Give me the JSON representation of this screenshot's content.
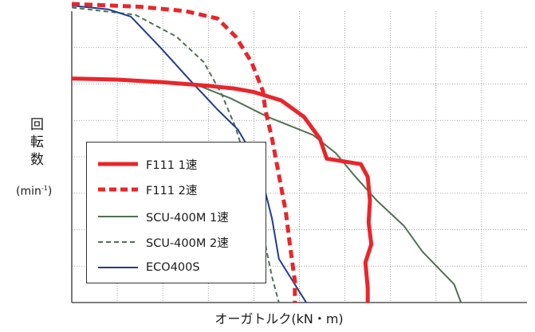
{
  "chart_data": {
    "type": "line",
    "title": "",
    "ylabel_chars": [
      "回",
      "転",
      "数"
    ],
    "ylabel_unit": {
      "before": "(min",
      "sup": "-1",
      "after": ")"
    },
    "xlabel": "オーガトルク(kN・m)",
    "xlim": [
      0,
      10
    ],
    "ylim": [
      0,
      8
    ],
    "grid": {
      "x_lines": 10,
      "y_lines": 8,
      "style": "dotted"
    },
    "legend_position": "lower-left",
    "series": [
      {
        "name": "F111 1速",
        "color": "#e8262b",
        "dash": "solid",
        "width": 5,
        "points": [
          [
            0,
            6.15
          ],
          [
            1,
            6.12
          ],
          [
            2,
            6.05
          ],
          [
            3,
            5.95
          ],
          [
            3.6,
            5.87
          ],
          [
            4,
            5.78
          ],
          [
            4.6,
            5.55
          ],
          [
            5.1,
            5.1
          ],
          [
            5.45,
            4.5
          ],
          [
            5.6,
            3.95
          ],
          [
            6.35,
            3.8
          ],
          [
            6.5,
            3.45
          ],
          [
            6.55,
            2.8
          ],
          [
            6.52,
            2.2
          ],
          [
            6.58,
            1.6
          ],
          [
            6.45,
            1.1
          ],
          [
            6.5,
            0.4
          ],
          [
            6.5,
            0.0
          ]
        ]
      },
      {
        "name": "F111 2速",
        "color": "#e8262b",
        "dash": "dashed",
        "width": 5,
        "points": [
          [
            0,
            8.2
          ],
          [
            1.5,
            8.12
          ],
          [
            2.5,
            8.0
          ],
          [
            3.2,
            7.8
          ],
          [
            3.6,
            7.3
          ],
          [
            3.95,
            6.6
          ],
          [
            4.2,
            5.8
          ],
          [
            4.25,
            5.3
          ],
          [
            4.4,
            4.5
          ],
          [
            4.55,
            3.5
          ],
          [
            4.7,
            2.5
          ],
          [
            4.8,
            1.5
          ],
          [
            4.9,
            0.6
          ],
          [
            4.9,
            0.0
          ]
        ]
      },
      {
        "name": "SCU-400M 1速",
        "color": "#4f7152",
        "dash": "solid",
        "width": 2,
        "points": [
          [
            0,
            6.15
          ],
          [
            1.5,
            6.1
          ],
          [
            2.7,
            6.0
          ],
          [
            3.5,
            5.6
          ],
          [
            4.3,
            5.1
          ],
          [
            5.3,
            4.6
          ],
          [
            5.8,
            4.1
          ],
          [
            6.2,
            3.5
          ],
          [
            6.7,
            2.8
          ],
          [
            7.3,
            2.1
          ],
          [
            7.7,
            1.4
          ],
          [
            8.4,
            0.5
          ],
          [
            8.55,
            0.0
          ]
        ]
      },
      {
        "name": "SCU-400M 2速",
        "color": "#4f7152",
        "dash": "dashed",
        "width": 2,
        "points": [
          [
            0,
            8.1
          ],
          [
            1.4,
            7.9
          ],
          [
            2.3,
            7.3
          ],
          [
            2.9,
            6.6
          ],
          [
            3.3,
            5.7
          ],
          [
            3.6,
            4.8
          ],
          [
            3.85,
            3.8
          ],
          [
            4.05,
            2.7
          ],
          [
            4.25,
            1.6
          ],
          [
            4.4,
            0.7
          ],
          [
            4.55,
            0.0
          ]
        ]
      },
      {
        "name": "ECO400S",
        "color": "#1f3c92",
        "dash": "solid",
        "width": 2,
        "points": [
          [
            0,
            8.15
          ],
          [
            0.8,
            8.05
          ],
          [
            1.3,
            7.85
          ],
          [
            1.95,
            7.0
          ],
          [
            2.6,
            6.1
          ],
          [
            3.2,
            5.3
          ],
          [
            3.65,
            4.75
          ],
          [
            4.0,
            4.0
          ],
          [
            4.2,
            3.3
          ],
          [
            4.4,
            2.3
          ],
          [
            4.55,
            1.2
          ],
          [
            4.75,
            0.8
          ],
          [
            5.0,
            0.3
          ],
          [
            5.15,
            0.0
          ]
        ]
      }
    ]
  }
}
